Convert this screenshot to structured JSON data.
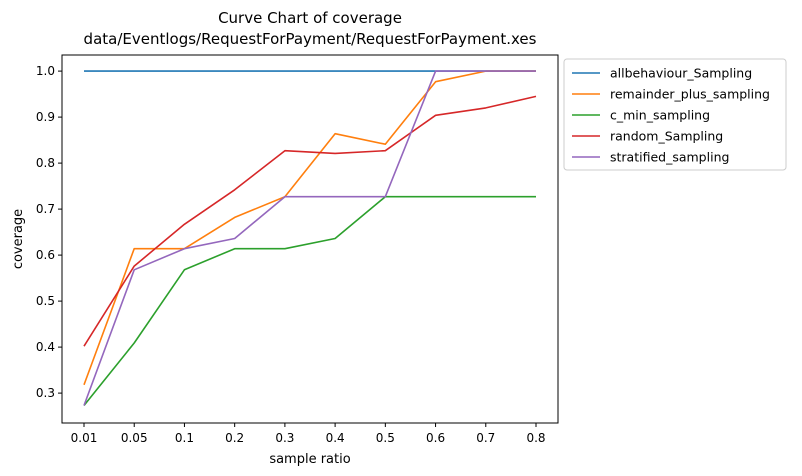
{
  "chart_data": {
    "type": "line",
    "title": "Curve Chart of coverage",
    "subtitle": "data/Eventlogs/RequestForPayment/RequestForPayment.xes",
    "xlabel": "sample ratio",
    "ylabel": "coverage",
    "categories": [
      "0.01",
      "0.05",
      "0.1",
      "0.2",
      "0.3",
      "0.4",
      "0.5",
      "0.6",
      "0.7",
      "0.8"
    ],
    "ylim": [
      0.235,
      1.035
    ],
    "yticks": [
      "0.3",
      "0.4",
      "0.5",
      "0.6",
      "0.7",
      "0.8",
      "0.9",
      "1.0"
    ],
    "grid": false,
    "legend_position": "outside-top-right",
    "series": [
      {
        "name": "allbehaviour_Sampling",
        "color": "#1f77b4",
        "values": [
          1.0,
          1.0,
          1.0,
          1.0,
          1.0,
          1.0,
          1.0,
          1.0,
          1.0,
          1.0
        ]
      },
      {
        "name": "remainder_plus_sampling",
        "color": "#ff7f0e",
        "values": [
          0.318,
          0.614,
          0.614,
          0.682,
          0.727,
          0.864,
          0.841,
          0.977,
          1.0,
          1.0
        ]
      },
      {
        "name": "c_min_sampling",
        "color": "#2ca02c",
        "values": [
          0.273,
          0.409,
          0.568,
          0.614,
          0.614,
          0.636,
          0.727,
          0.727,
          0.727,
          0.727
        ]
      },
      {
        "name": "random_Sampling",
        "color": "#d62728",
        "values": [
          0.402,
          0.576,
          0.667,
          0.742,
          0.827,
          0.821,
          0.827,
          0.904,
          0.92,
          0.945
        ]
      },
      {
        "name": "stratified_sampling",
        "color": "#9467bd",
        "values": [
          0.273,
          0.568,
          0.614,
          0.636,
          0.727,
          0.727,
          0.727,
          1.0,
          1.0,
          1.0
        ]
      }
    ]
  }
}
